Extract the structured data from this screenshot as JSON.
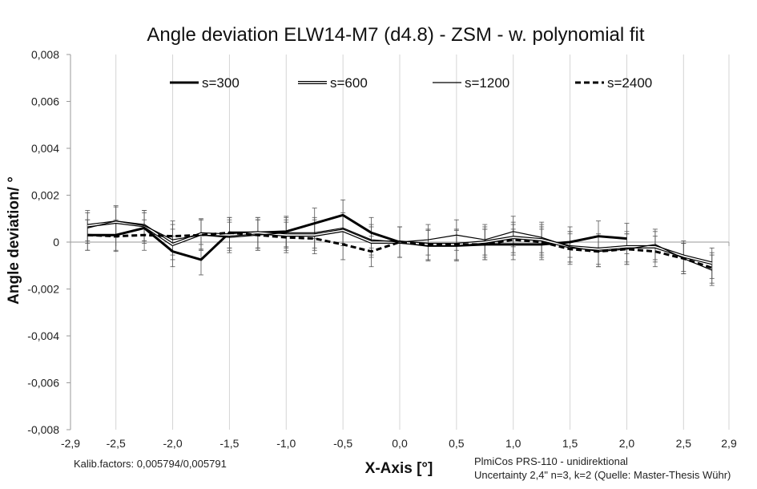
{
  "chart_data": {
    "type": "line",
    "title": "Angle deviation ELW14-M7 (d4.8) - ZSM - w. polynomial fit",
    "xlabel": "X-Axis [°]",
    "ylabel": "Angle deviation/ °",
    "xlim": [
      -2.9,
      2.9
    ],
    "ylim": [
      -0.008,
      0.008
    ],
    "x_ticks": [
      -2.9,
      -2.5,
      -2.0,
      -1.5,
      -1.0,
      -0.5,
      0.0,
      0.5,
      1.0,
      1.5,
      2.0,
      2.5,
      2.9
    ],
    "x_tick_labels": [
      "-2,9",
      "-2,5",
      "-2,0",
      "-1,5",
      "-1,0",
      "-0,5",
      "0,0",
      "0,5",
      "1,0",
      "1,5",
      "2,0",
      "2,5",
      "2,9"
    ],
    "y_ticks": [
      0.008,
      0.006,
      0.004,
      0.002,
      0,
      -0.002,
      -0.004,
      -0.006,
      -0.008
    ],
    "y_tick_labels": [
      "0,008",
      "0,006",
      "0,004",
      "0,002",
      "0",
      "-0,002",
      "-0,004",
      "-0,006",
      "-0,008"
    ],
    "grid": "vertical",
    "legend_position": "top",
    "error_bar": 0.00065,
    "series": [
      {
        "name": "s=300",
        "style": "thick",
        "x": [
          -2.75,
          -2.5,
          -2.25,
          -2.0,
          -1.75,
          -1.5,
          -1.25,
          -1.0,
          -0.75,
          -0.5,
          -0.25,
          0.0,
          0.25,
          0.5,
          0.75,
          1.0,
          1.25,
          1.5,
          1.75,
          2.0
        ],
        "y": [
          0.0003,
          0.0003,
          0.0006,
          -0.0004,
          -0.00075,
          0.0004,
          0.0004,
          0.00045,
          0.0008,
          0.00115,
          0.0004,
          0.0,
          -0.00015,
          -0.00015,
          -0.0001,
          -0.0001,
          -0.0001,
          0.0,
          0.00025,
          0.00015
        ]
      },
      {
        "name": "s=600",
        "style": "double",
        "x": [
          -2.75,
          -2.5,
          -2.25,
          -2.0,
          -1.75,
          -1.5,
          -1.25,
          -1.0,
          -0.75,
          -0.5,
          -0.25,
          0.0,
          0.25,
          0.5,
          0.75,
          1.0,
          1.25,
          1.5,
          1.75,
          2.0,
          2.25,
          2.5,
          2.75
        ],
        "y": [
          0.0007,
          0.00085,
          0.0007,
          -0.0001,
          0.00035,
          0.0003,
          0.0004,
          0.0003,
          0.0003,
          0.0005,
          0.0,
          0.0,
          -0.0001,
          -0.0001,
          0.0,
          0.0002,
          0.0001,
          -0.0002,
          -0.0003,
          -0.0002,
          -0.0002,
          -0.0006,
          -0.0009
        ]
      },
      {
        "name": "s=1200",
        "style": "thin",
        "x": [
          -2.75,
          -2.5,
          -2.25,
          -2.0,
          -1.75,
          -1.5,
          -1.25,
          -1.0,
          -0.75,
          -0.5,
          -0.25,
          0.0,
          0.25,
          0.5,
          0.75,
          1.0,
          1.25,
          1.5,
          1.75,
          2.0,
          2.25,
          2.5,
          2.75
        ],
        "y": [
          0.0006,
          0.0009,
          0.0007,
          0.0001,
          0.0003,
          0.0002,
          0.0003,
          0.0004,
          0.0004,
          0.0006,
          0.0001,
          0.0,
          0.0001,
          0.0003,
          0.0001,
          0.00045,
          0.0002,
          -0.0002,
          -0.0004,
          -0.0003,
          -0.0001,
          -0.0007,
          -0.0012
        ]
      },
      {
        "name": "s=2400",
        "style": "dashed",
        "x": [
          -2.75,
          -2.5,
          -2.25,
          -2.0,
          -1.75,
          -1.5,
          -1.25,
          -1.0,
          -0.75,
          -0.5,
          -0.25,
          0.0,
          0.25,
          0.5,
          0.75,
          1.0,
          1.25,
          1.5,
          1.75,
          2.0,
          2.25,
          2.5,
          2.75
        ],
        "y": [
          0.0003,
          0.00025,
          0.0003,
          0.00025,
          0.0003,
          0.0004,
          0.0003,
          0.0002,
          0.00015,
          -0.0001,
          -0.0004,
          0.0,
          -0.0001,
          -0.0001,
          -0.0001,
          0.0001,
          0.0,
          -0.0003,
          -0.0004,
          -0.0003,
          -0.0004,
          -0.0007,
          -0.0011
        ]
      }
    ]
  },
  "notes": {
    "kalib": "Kalib.factors: 0,005794/0,005791",
    "instrument_line1": "PlmiCos PRS-110 - unidirektional",
    "instrument_line2": "Uncertainty 2,4\" n=3, k=2 (Quelle: Master-Thesis Wühr)"
  }
}
